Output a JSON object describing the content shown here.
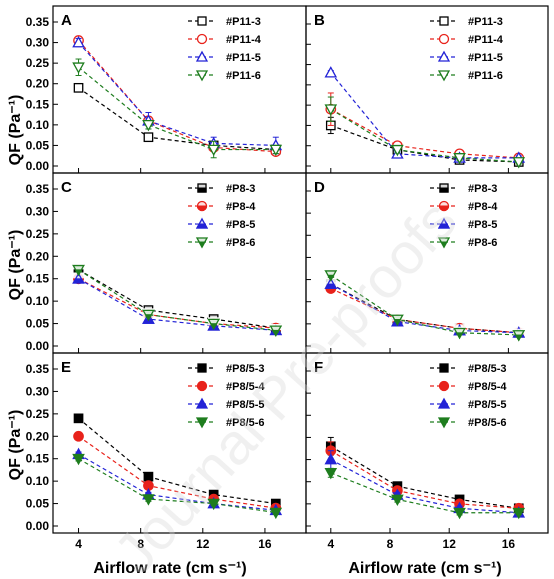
{
  "watermark": "Journal Pre-proofs",
  "y_title": "QF (Pa⁻¹)",
  "x_title": "Airflow rate (cm s⁻¹)",
  "series_colors": [
    "#000000",
    "#e8221b",
    "#2323d6",
    "#1e7d1e"
  ],
  "chart_data": [
    {
      "type": "scatter",
      "panel": "A",
      "x": [
        4,
        8.5,
        12.7,
        16.7
      ],
      "xlim": [
        3,
        18
      ],
      "ylim": [
        0,
        0.35
      ],
      "xticks": [
        4,
        8,
        12,
        16
      ],
      "yticks": [
        "0.00",
        "0.05",
        "0.10",
        "0.15",
        "0.20",
        "0.25",
        "0.30",
        "0.35"
      ],
      "marker_style": "open",
      "legend_position": "top-right",
      "series": [
        {
          "name": "#P11-3",
          "marker": "square",
          "values": [
            0.19,
            0.07,
            0.05,
            0.04
          ],
          "errors": [
            0.01,
            0.007,
            0.005,
            0.005
          ]
        },
        {
          "name": "#P11-4",
          "marker": "circle",
          "values": [
            0.305,
            0.11,
            0.045,
            0.035
          ],
          "errors": [
            0.01,
            0.01,
            0.008,
            0.006
          ]
        },
        {
          "name": "#P11-5",
          "marker": "triangle-up",
          "values": [
            0.3,
            0.11,
            0.055,
            0.05
          ],
          "errors": [
            0.01,
            0.02,
            0.015,
            0.02
          ]
        },
        {
          "name": "#P11-6",
          "marker": "triangle-down",
          "values": [
            0.24,
            0.1,
            0.04,
            0.04
          ],
          "errors": [
            0.02,
            0.01,
            0.02,
            0.01
          ]
        }
      ]
    },
    {
      "type": "scatter",
      "panel": "B",
      "x": [
        4,
        8.5,
        12.7,
        16.7
      ],
      "xlim": [
        3,
        18
      ],
      "ylim": [
        0,
        0.35
      ],
      "xticks": [
        4,
        8,
        12,
        16
      ],
      "yticks": [],
      "marker_style": "open",
      "legend_position": "top-right",
      "series": [
        {
          "name": "#P11-3",
          "marker": "square",
          "values": [
            0.1,
            0.04,
            0.015,
            0.01
          ],
          "errors": [
            0.02,
            0.006,
            0.005,
            0.005
          ]
        },
        {
          "name": "#P11-4",
          "marker": "circle",
          "values": [
            0.14,
            0.05,
            0.03,
            0.02
          ],
          "errors": [
            0.04,
            0.008,
            0.006,
            0.005
          ]
        },
        {
          "name": "#P11-5",
          "marker": "triangle-up",
          "values": [
            0.23,
            0.03,
            0.02,
            0.02
          ],
          "errors": [
            0.005,
            0.006,
            0.005,
            0.005
          ]
        },
        {
          "name": "#P11-6",
          "marker": "triangle-down",
          "values": [
            0.14,
            0.04,
            0.02,
            0.01
          ],
          "errors": [
            0.03,
            0.008,
            0.006,
            0.005
          ]
        }
      ]
    },
    {
      "type": "scatter",
      "panel": "C",
      "x": [
        4,
        8.5,
        12.7,
        16.7
      ],
      "xlim": [
        3,
        18
      ],
      "ylim": [
        0,
        0.35
      ],
      "xticks": [
        4,
        8,
        12,
        16
      ],
      "yticks": [
        "0.00",
        "0.05",
        "0.10",
        "0.15",
        "0.20",
        "0.25",
        "0.30",
        "0.35"
      ],
      "marker_style": "half-filled",
      "legend_position": "top-right",
      "series": [
        {
          "name": "#P8-3",
          "marker": "square",
          "values": [
            0.17,
            0.08,
            0.06,
            0.04
          ],
          "errors": [
            0.005,
            0.005,
            0.004,
            0.004
          ]
        },
        {
          "name": "#P8-4",
          "marker": "circle",
          "values": [
            0.15,
            0.07,
            0.05,
            0.04
          ],
          "errors": [
            0.005,
            0.005,
            0.004,
            0.004
          ]
        },
        {
          "name": "#P8-5",
          "marker": "triangle-up",
          "values": [
            0.15,
            0.06,
            0.045,
            0.035
          ],
          "errors": [
            0.005,
            0.005,
            0.004,
            0.004
          ]
        },
        {
          "name": "#P8-6",
          "marker": "triangle-down",
          "values": [
            0.17,
            0.07,
            0.05,
            0.035
          ],
          "errors": [
            0.005,
            0.005,
            0.004,
            0.004
          ]
        }
      ]
    },
    {
      "type": "scatter",
      "panel": "D",
      "x": [
        4,
        8.5,
        12.7,
        16.7
      ],
      "xlim": [
        3,
        18
      ],
      "ylim": [
        0,
        0.35
      ],
      "xticks": [
        4,
        8,
        12,
        16
      ],
      "yticks": [],
      "marker_style": "half-filled",
      "legend_position": "top-right",
      "series": [
        {
          "name": "#P8-3",
          "marker": "square",
          "values": [
            0.14,
            0.06,
            0.04,
            0.03
          ],
          "errors": [
            0.005,
            0.005,
            0.004,
            0.004
          ]
        },
        {
          "name": "#P8-4",
          "marker": "circle",
          "values": [
            0.13,
            0.06,
            0.04,
            0.03
          ],
          "errors": [
            0.005,
            0.005,
            0.004,
            0.004
          ]
        },
        {
          "name": "#P8-5",
          "marker": "triangle-up",
          "values": [
            0.14,
            0.055,
            0.035,
            0.03
          ],
          "errors": [
            0.005,
            0.005,
            0.004,
            0.004
          ]
        },
        {
          "name": "#P8-6",
          "marker": "triangle-down",
          "values": [
            0.16,
            0.06,
            0.03,
            0.025
          ],
          "errors": [
            0.005,
            0.005,
            0.004,
            0.004
          ]
        }
      ]
    },
    {
      "type": "scatter",
      "panel": "E",
      "x": [
        4,
        8.5,
        12.7,
        16.7
      ],
      "xlim": [
        3,
        18
      ],
      "ylim": [
        0,
        0.35
      ],
      "xticks": [
        "4",
        "8",
        "12",
        "16"
      ],
      "yticks": [
        "0.00",
        "0.05",
        "0.10",
        "0.15",
        "0.20",
        "0.25",
        "0.30",
        "0.35"
      ],
      "marker_style": "filled",
      "legend_position": "top-right",
      "series": [
        {
          "name": "#P8/5-3",
          "marker": "square",
          "values": [
            0.24,
            0.11,
            0.07,
            0.05
          ],
          "errors": [
            0.005,
            0.005,
            0.004,
            0.004
          ]
        },
        {
          "name": "#P8/5-4",
          "marker": "circle",
          "values": [
            0.2,
            0.09,
            0.06,
            0.04
          ],
          "errors": [
            0.005,
            0.005,
            0.004,
            0.004
          ]
        },
        {
          "name": "#P8/5-5",
          "marker": "triangle-up",
          "values": [
            0.16,
            0.07,
            0.05,
            0.035
          ],
          "errors": [
            0.005,
            0.005,
            0.004,
            0.004
          ]
        },
        {
          "name": "#P8/5-6",
          "marker": "triangle-down",
          "values": [
            0.15,
            0.06,
            0.05,
            0.03
          ],
          "errors": [
            0.005,
            0.005,
            0.004,
            0.004
          ]
        }
      ]
    },
    {
      "type": "scatter",
      "panel": "F",
      "x": [
        4,
        8.5,
        12.7,
        16.7
      ],
      "xlim": [
        3,
        18
      ],
      "ylim": [
        0,
        0.35
      ],
      "xticks": [
        "4",
        "8",
        "12",
        "16"
      ],
      "yticks": [],
      "marker_style": "filled",
      "legend_position": "top-right",
      "series": [
        {
          "name": "#P8/5-3",
          "marker": "square",
          "values": [
            0.18,
            0.09,
            0.06,
            0.04
          ],
          "errors": [
            0.02,
            0.006,
            0.005,
            0.004
          ]
        },
        {
          "name": "#P8/5-4",
          "marker": "circle",
          "values": [
            0.17,
            0.08,
            0.05,
            0.04
          ],
          "errors": [
            0.02,
            0.006,
            0.005,
            0.004
          ]
        },
        {
          "name": "#P8/5-5",
          "marker": "triangle-up",
          "values": [
            0.15,
            0.07,
            0.04,
            0.03
          ],
          "errors": [
            0.02,
            0.006,
            0.005,
            0.004
          ]
        },
        {
          "name": "#P8/5-6",
          "marker": "triangle-down",
          "values": [
            0.12,
            0.06,
            0.03,
            0.03
          ],
          "errors": [
            0.01,
            0.006,
            0.005,
            0.004
          ]
        }
      ]
    }
  ]
}
